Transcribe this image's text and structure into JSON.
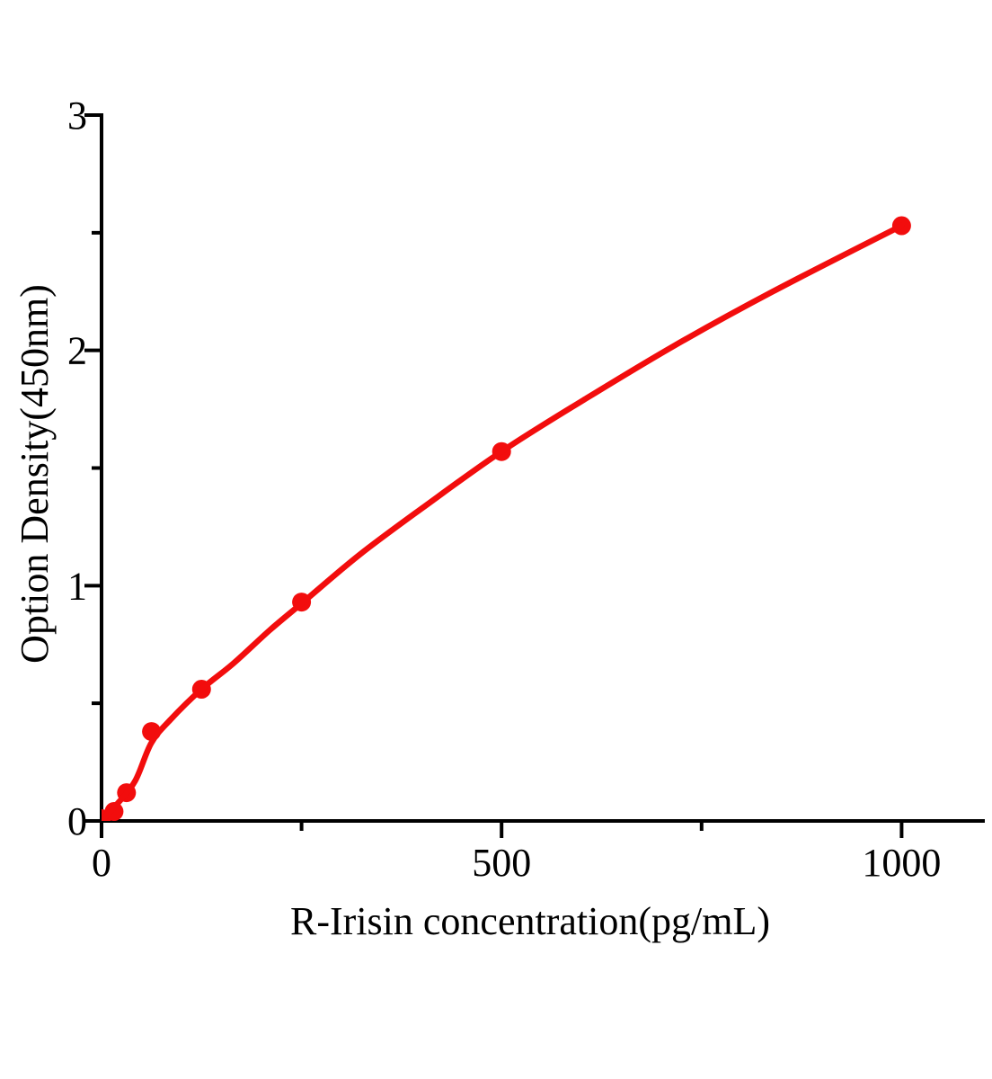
{
  "page": {
    "background": "#ffffff"
  },
  "chart_data": {
    "type": "scatter",
    "title": "",
    "xlabel": "R-Irisin concentration(pg/mL)",
    "ylabel": "Option Density(450nm)",
    "xlim": [
      0,
      1104
    ],
    "ylim": [
      0,
      3
    ],
    "x_ticks_major": [
      0,
      500,
      1000
    ],
    "x_ticks_minor": [
      250,
      750
    ],
    "y_ticks_major": [
      0,
      1,
      2,
      3
    ],
    "y_ticks_minor": [
      0.5,
      1.5,
      2.5
    ],
    "grid": false,
    "legend": "none",
    "axis_color": "#000000",
    "series": [
      {
        "name": "standard points",
        "role": "scatter",
        "marker": "circle",
        "marker_radius": 10.5,
        "color": "#f20d0d",
        "points": [
          [
            0,
            0.01
          ],
          [
            15.6,
            0.04
          ],
          [
            31.2,
            0.12
          ],
          [
            62.5,
            0.38
          ],
          [
            125,
            0.56
          ],
          [
            250,
            0.93
          ],
          [
            500,
            1.57
          ],
          [
            1000,
            2.53
          ]
        ]
      },
      {
        "name": "fitted curve",
        "role": "line",
        "line_width": 6.5,
        "color": "#f20d0d",
        "points": [
          [
            1,
            0.005
          ],
          [
            19,
            0.07
          ],
          [
            42,
            0.17
          ],
          [
            62,
            0.33
          ],
          [
            86,
            0.43
          ],
          [
            125,
            0.56
          ],
          [
            165,
            0.67
          ],
          [
            210,
            0.81
          ],
          [
            252,
            0.93
          ],
          [
            322,
            1.13
          ],
          [
            401,
            1.33
          ],
          [
            500,
            1.57
          ],
          [
            603,
            1.79
          ],
          [
            716,
            2.02
          ],
          [
            839,
            2.25
          ],
          [
            1000,
            2.53
          ]
        ]
      }
    ]
  }
}
